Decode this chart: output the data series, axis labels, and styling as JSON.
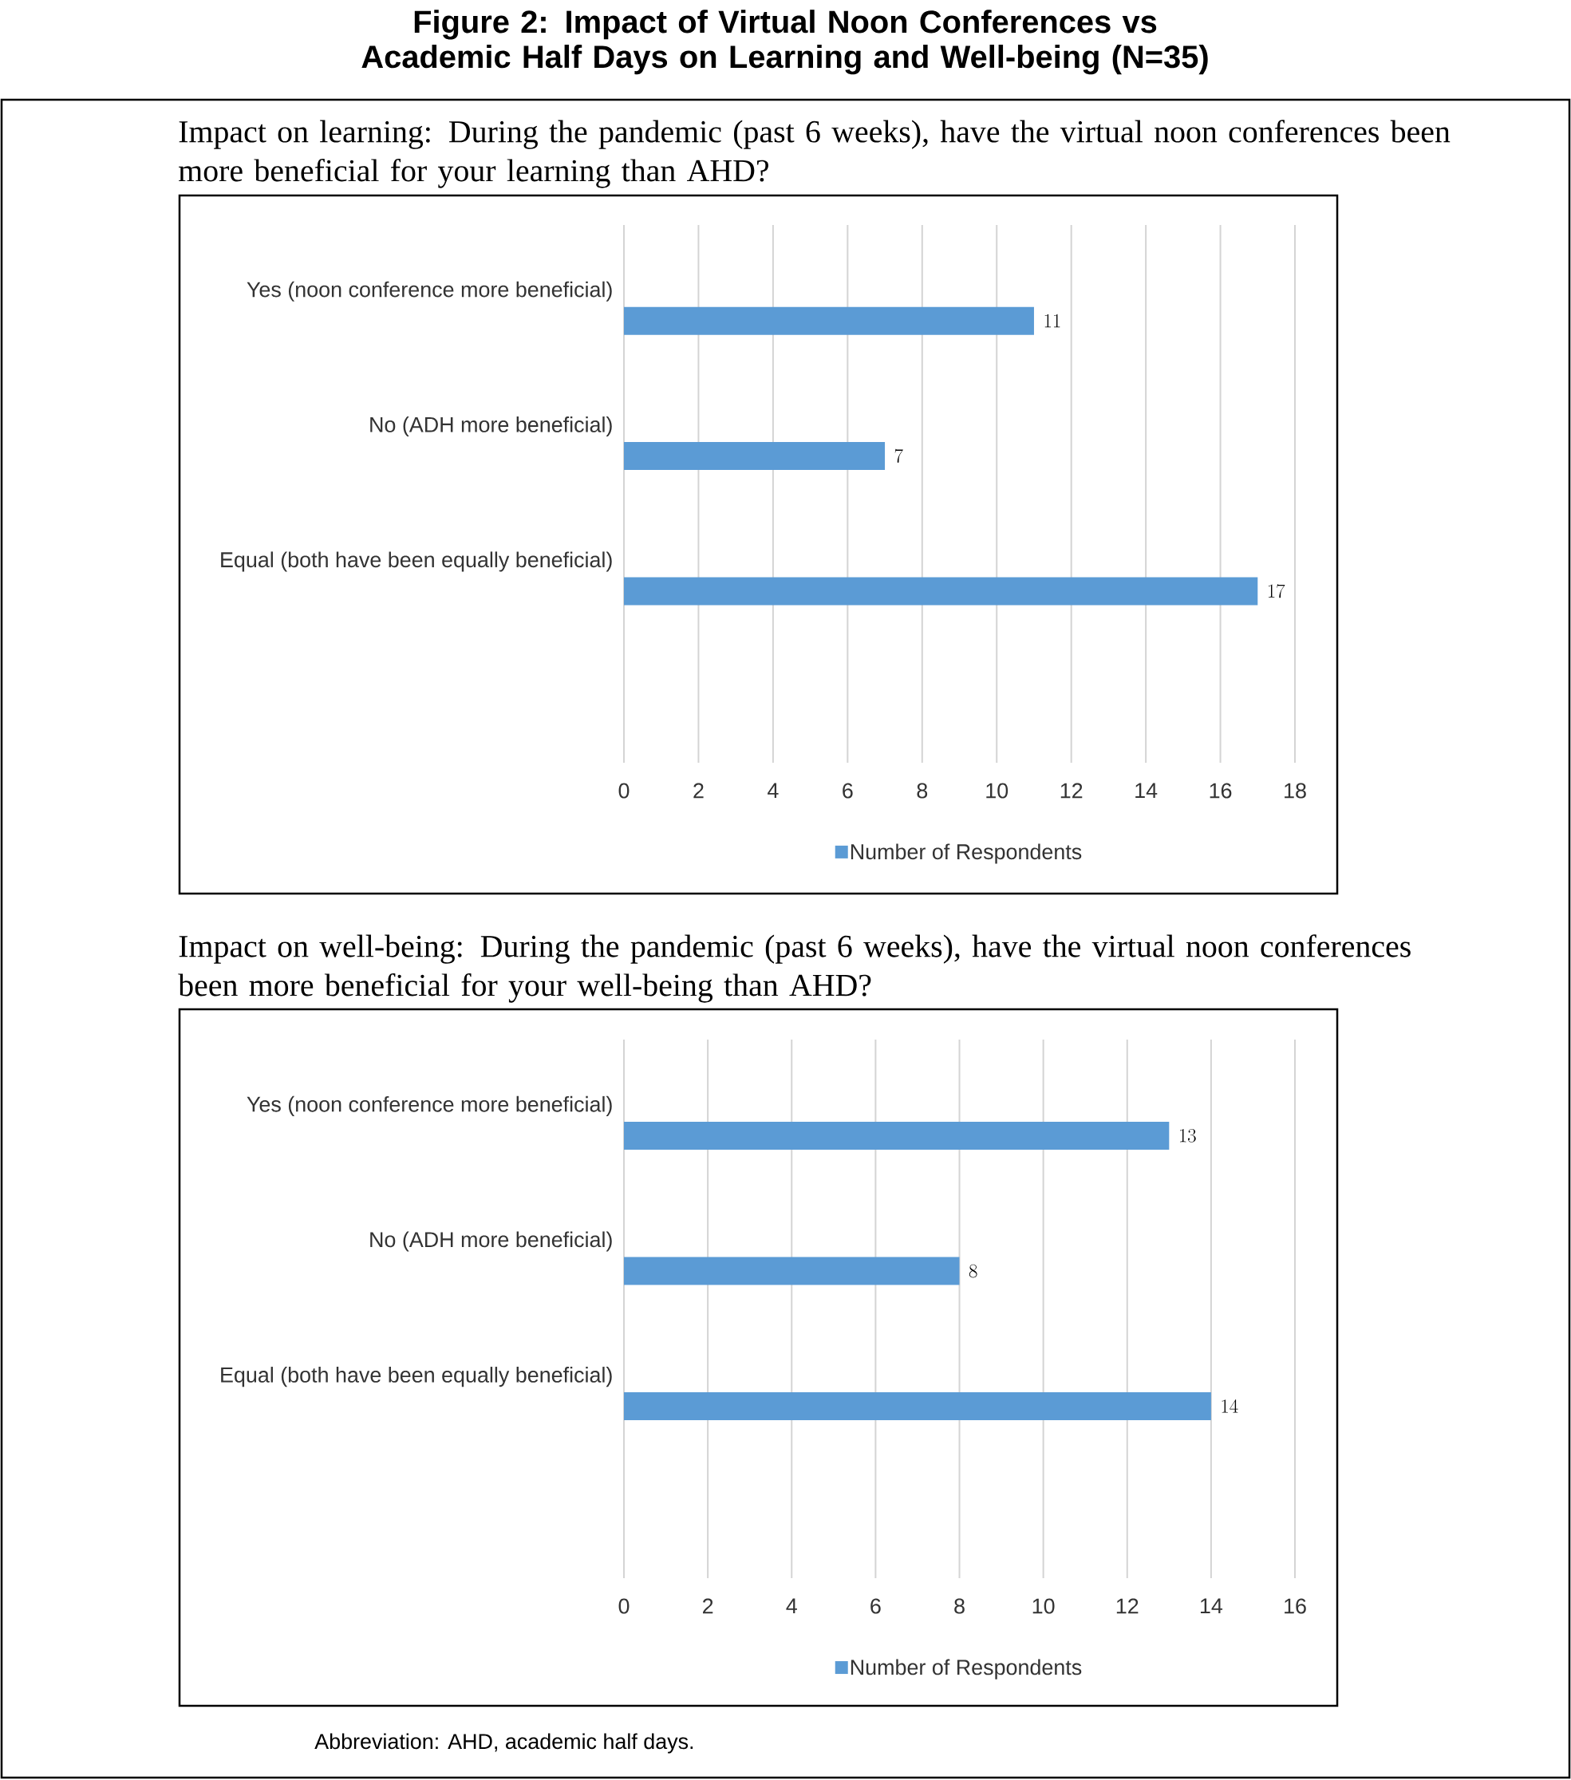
{
  "chart_data": [
    {
      "type": "bar",
      "orientation": "horizontal",
      "title": "Figure 2: Impact of Virtual Noon Conferences vs Academic Half Days on Learning and Well-being (N=35)",
      "subtitle": "Impact on learning: During the pandemic (past 6 weeks), have the virtual noon conferences been more beneficial for your learning than AHD?",
      "categories": [
        "Yes (noon conference more beneficial)",
        "No (ADH more beneficial)",
        "Equal (both have been equally beneficial)"
      ],
      "series": [
        {
          "name": "Number of Respondents",
          "color": "#5b9bd5",
          "values": [
            11,
            7,
            17
          ]
        }
      ],
      "xlim": [
        0,
        18
      ],
      "xticks": [
        0,
        2,
        4,
        6,
        8,
        10,
        12,
        14,
        16,
        18
      ],
      "grid": "x",
      "legend": "bottom",
      "data_labels": true
    },
    {
      "type": "bar",
      "orientation": "horizontal",
      "subtitle": "Impact on well-being: During the pandemic (past 6 weeks), have the virtual noon conferences been more beneficial for your well-being than AHD?",
      "categories": [
        "Yes (noon conference more beneficial)",
        "No (ADH more beneficial)",
        "Equal (both have been equally beneficial)"
      ],
      "series": [
        {
          "name": "Number of Respondents",
          "color": "#5b9bd5",
          "values": [
            13,
            8,
            14
          ]
        }
      ],
      "xlim": [
        0,
        16
      ],
      "xticks": [
        0,
        2,
        4,
        6,
        8,
        10,
        12,
        14,
        16
      ],
      "grid": "x",
      "legend": "bottom",
      "data_labels": true,
      "annotations": [
        "Abbreviation: AHD, academic half days."
      ]
    }
  ]
}
